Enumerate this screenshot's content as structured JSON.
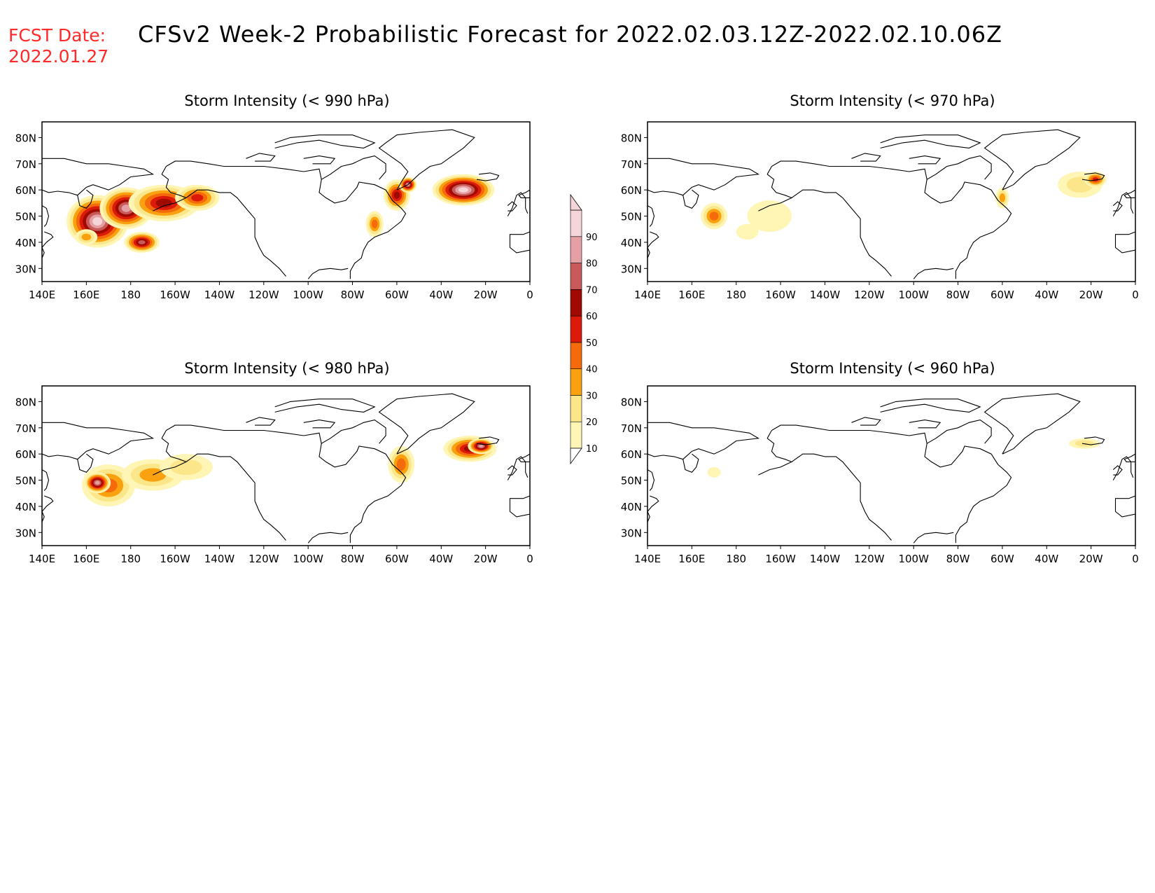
{
  "header": {
    "fcst_label": "FCST Date:",
    "fcst_date": "2022.01.27",
    "title": "CFSv2 Week-2 Probabilistic Forecast for 2022.02.03.12Z-2022.02.10.06Z"
  },
  "colors": {
    "bins": [
      "#fff5b4",
      "#fce68a",
      "#f9a10f",
      "#f56a0a",
      "#dc1a0a",
      "#a00a00",
      "#c85a5a",
      "#e4a0a4",
      "#f6d5d8"
    ],
    "frame": "#000000",
    "fcst_text": "#ff2a2a"
  },
  "colorbar": {
    "ticks": [
      "10",
      "20",
      "30",
      "40",
      "50",
      "60",
      "70",
      "80",
      "90"
    ]
  },
  "map": {
    "lat_labels": [
      "80N",
      "70N",
      "60N",
      "50N",
      "40N",
      "30N"
    ],
    "lon_labels": [
      "140E",
      "160E",
      "180",
      "160W",
      "140W",
      "120W",
      "100W",
      "80W",
      "60W",
      "40W",
      "20W",
      "0"
    ]
  },
  "panels": [
    {
      "title": "Storm Intensity (< 990 hPa)",
      "blobs": [
        {
          "lon": 165,
          "lat": 48,
          "rx": 14,
          "ry": 10,
          "level": 9
        },
        {
          "lon": 178,
          "lat": 53,
          "rx": 12,
          "ry": 8,
          "level": 8
        },
        {
          "lon": 195,
          "lat": 55,
          "rx": 16,
          "ry": 7,
          "level": 6
        },
        {
          "lon": 210,
          "lat": 57,
          "rx": 10,
          "ry": 5,
          "level": 5
        },
        {
          "lon": 160,
          "lat": 42,
          "rx": 5,
          "ry": 3,
          "level": 3
        },
        {
          "lon": 185,
          "lat": 40,
          "rx": 8,
          "ry": 4,
          "level": 7
        },
        {
          "lon": 300,
          "lat": 58,
          "rx": 6,
          "ry": 6,
          "level": 6
        },
        {
          "lon": 330,
          "lat": 60,
          "rx": 14,
          "ry": 6,
          "level": 9
        },
        {
          "lon": 290,
          "lat": 47,
          "rx": 4,
          "ry": 5,
          "level": 4
        },
        {
          "lon": 305,
          "lat": 62,
          "rx": 4,
          "ry": 3,
          "level": 8
        }
      ]
    },
    {
      "title": "Storm Intensity (< 970 hPa)",
      "blobs": [
        {
          "lon": 170,
          "lat": 50,
          "rx": 6,
          "ry": 5,
          "level": 4
        },
        {
          "lon": 195,
          "lat": 50,
          "rx": 10,
          "ry": 6,
          "level": 1
        },
        {
          "lon": 185,
          "lat": 44,
          "rx": 5,
          "ry": 3,
          "level": 1
        },
        {
          "lon": 300,
          "lat": 57,
          "rx": 3,
          "ry": 4,
          "level": 3
        },
        {
          "lon": 335,
          "lat": 62,
          "rx": 10,
          "ry": 5,
          "level": 2
        },
        {
          "lon": 342,
          "lat": 64,
          "rx": 5,
          "ry": 3,
          "level": 5
        }
      ]
    },
    {
      "title": "Storm Intensity (< 980 hPa)",
      "blobs": [
        {
          "lon": 170,
          "lat": 48,
          "rx": 12,
          "ry": 8,
          "level": 4
        },
        {
          "lon": 165,
          "lat": 49,
          "rx": 6,
          "ry": 4,
          "level": 8
        },
        {
          "lon": 190,
          "lat": 52,
          "rx": 14,
          "ry": 6,
          "level": 3
        },
        {
          "lon": 205,
          "lat": 55,
          "rx": 12,
          "ry": 5,
          "level": 2
        },
        {
          "lon": 302,
          "lat": 56,
          "rx": 6,
          "ry": 7,
          "level": 4
        },
        {
          "lon": 333,
          "lat": 62,
          "rx": 12,
          "ry": 5,
          "level": 6
        },
        {
          "lon": 338,
          "lat": 63,
          "rx": 6,
          "ry": 3,
          "level": 8
        }
      ]
    },
    {
      "title": "Storm Intensity (< 960 hPa)",
      "blobs": [
        {
          "lon": 170,
          "lat": 53,
          "rx": 3,
          "ry": 2,
          "level": 1
        },
        {
          "lon": 337,
          "lat": 64,
          "rx": 7,
          "ry": 2,
          "level": 2
        }
      ]
    }
  ]
}
